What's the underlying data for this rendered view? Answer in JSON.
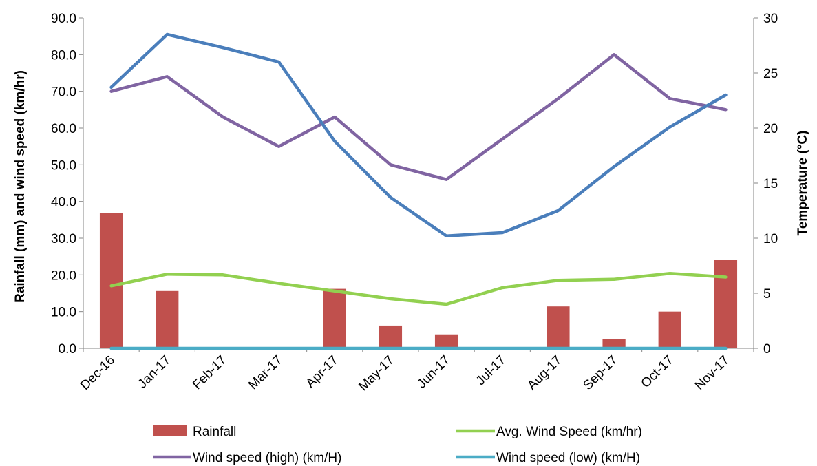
{
  "chart_data": {
    "type": "bar",
    "categories": [
      "Dec-16",
      "Jan-17",
      "Feb-17",
      "Mar-17",
      "Apr-17",
      "May-17",
      "Jun-17",
      "Jul-17",
      "Aug-17",
      "Sep-17",
      "Oct-17",
      "Nov-17"
    ],
    "left_axis": {
      "label": "Rainfall (mm)  and wind speed (km/hr)",
      "ylim": [
        0,
        90
      ],
      "ticks": [
        "0.0",
        "10.0",
        "20.0",
        "30.0",
        "40.0",
        "50.0",
        "60.0",
        "70.0",
        "80.0",
        "90.0"
      ]
    },
    "right_axis": {
      "label": "Temperature  (°C)",
      "ylim": [
        0,
        30
      ],
      "ticks": [
        "0",
        "5",
        "10",
        "15",
        "20",
        "25",
        "30"
      ]
    },
    "series": [
      {
        "name": "Rainfall",
        "type": "bar",
        "axis": "left",
        "color": "#c0504d",
        "values": [
          36.8,
          15.6,
          0,
          0,
          16.2,
          6.2,
          3.8,
          0,
          11.4,
          2.6,
          10.0,
          24.0
        ]
      },
      {
        "name": "Avg. Wind Speed (km/hr)",
        "type": "line",
        "axis": "left",
        "color": "#92d050",
        "values": [
          17.0,
          20.2,
          20.0,
          17.7,
          15.6,
          13.5,
          12.0,
          16.5,
          18.5,
          18.8,
          20.4,
          19.4
        ]
      },
      {
        "name": "Wind speed (high) (km/H)",
        "type": "line",
        "axis": "left",
        "color": "#8064a2",
        "values": [
          70.0,
          74.0,
          63.0,
          55.0,
          63.0,
          50.0,
          46.0,
          57.0,
          68.0,
          80.0,
          68.0,
          65.0
        ]
      },
      {
        "name": "Wind speed (low) (km/H)",
        "type": "line",
        "axis": "left",
        "color": "#4bacc6",
        "values": [
          0,
          0,
          0,
          0,
          0,
          0,
          0,
          0,
          0,
          0,
          0,
          0
        ]
      },
      {
        "name": "",
        "type": "line",
        "axis": "right",
        "color": "#4a7ebb",
        "values": [
          23.7,
          28.5,
          27.3,
          26.0,
          18.8,
          13.7,
          10.2,
          10.5,
          12.5,
          16.5,
          20.1,
          23.0
        ]
      }
    ],
    "legend": {
      "placement": "bottom",
      "items": [
        "Rainfall",
        "Avg. Wind Speed (km/hr)",
        "Wind speed (high) (km/H)",
        "Wind speed (low) (km/H)"
      ]
    },
    "grid": false
  }
}
